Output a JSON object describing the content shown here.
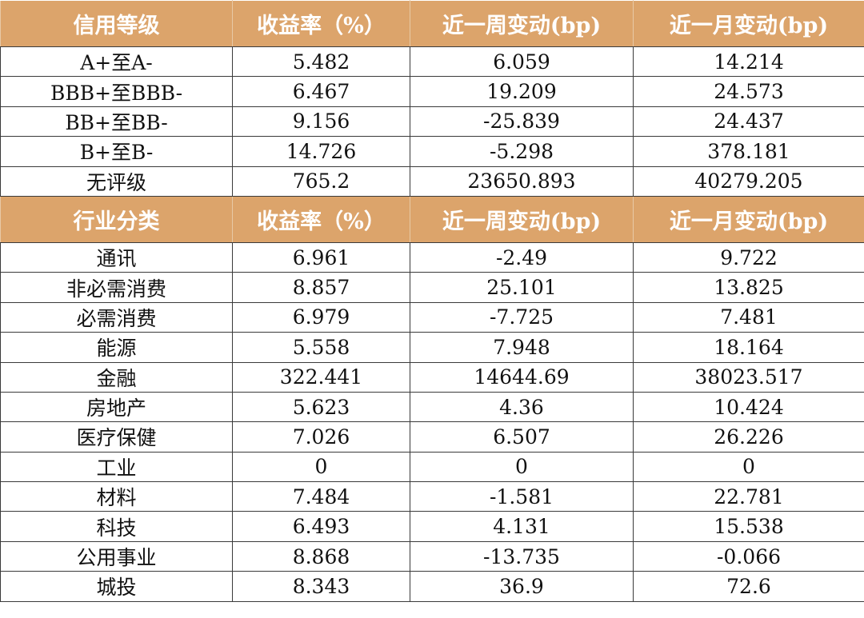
{
  "rating_section": {
    "headers": [
      "信用等级",
      "收益率（%）",
      "近一周变动(bp)",
      "近一月变动(bp)"
    ],
    "rows": [
      [
        "A+至A-",
        "5.482",
        "6.059",
        "14.214"
      ],
      [
        "BBB+至BBB-",
        "6.467",
        "19.209",
        "24.573"
      ],
      [
        "BB+至BB-",
        "9.156",
        "-25.839",
        "24.437"
      ],
      [
        "B+至B-",
        "14.726",
        "-5.298",
        "378.181"
      ],
      [
        "无评级",
        "765.2",
        "23650.893",
        "40279.205"
      ]
    ]
  },
  "industry_section": {
    "headers": [
      "行业分类",
      "收益率（%）",
      "近一周变动(bp)",
      "近一月变动(bp)"
    ],
    "rows": [
      [
        "通讯",
        "6.961",
        "-2.49",
        "9.722"
      ],
      [
        "非必需消费",
        "8.857",
        "25.101",
        "13.825"
      ],
      [
        "必需消费",
        "6.979",
        "-7.725",
        "7.481"
      ],
      [
        "能源",
        "5.558",
        "7.948",
        "18.164"
      ],
      [
        "金融",
        "322.441",
        "14644.69",
        "38023.517"
      ],
      [
        "房地产",
        "5.623",
        "4.36",
        "10.424"
      ],
      [
        "医疗保健",
        "7.026",
        "6.507",
        "26.226"
      ],
      [
        "工业",
        "0",
        "0",
        "0"
      ],
      [
        "材料",
        "7.484",
        "-1.581",
        "22.781"
      ],
      [
        "科技",
        "6.493",
        "4.131",
        "15.538"
      ],
      [
        "公用事业",
        "8.868",
        "-13.735",
        "-0.066"
      ],
      [
        "城投",
        "8.343",
        "36.9",
        "72.6"
      ]
    ]
  },
  "colors": {
    "header_bg": "#dca46b",
    "header_text": "#ffffff",
    "cell_text": "#111111",
    "border": "#3a3a3a"
  }
}
